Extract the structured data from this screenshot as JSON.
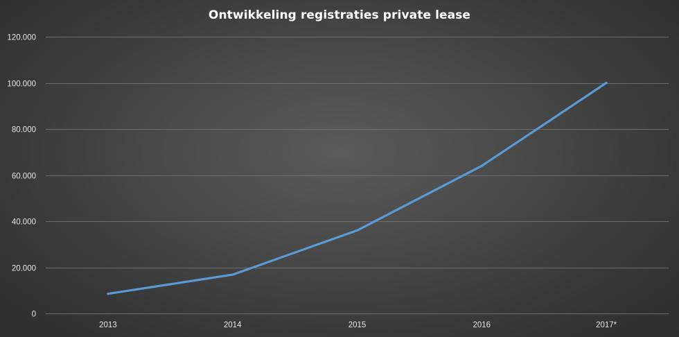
{
  "chart_data": {
    "type": "line",
    "title": "Ontwikkeling registraties private lease",
    "xlabel": "",
    "ylabel": "",
    "categories": [
      "2013",
      "2014",
      "2015",
      "2016",
      "2017*"
    ],
    "series": [
      {
        "values": [
          8500,
          16800,
          36000,
          64000,
          100000
        ]
      }
    ],
    "ylim": [
      0,
      120000
    ],
    "y_ticks": [
      0,
      20000,
      40000,
      60000,
      80000,
      100000,
      120000
    ],
    "y_tick_labels": [
      "0",
      "20.000",
      "40.000",
      "60.000",
      "80.000",
      "100.000",
      "120.000"
    ],
    "grid": "horizontal",
    "legend": "none",
    "colors": {
      "series": "#5b9bd5",
      "background": "#3f3f3f",
      "grid": "#6e6e6e",
      "text": "#e6e6e6"
    }
  }
}
